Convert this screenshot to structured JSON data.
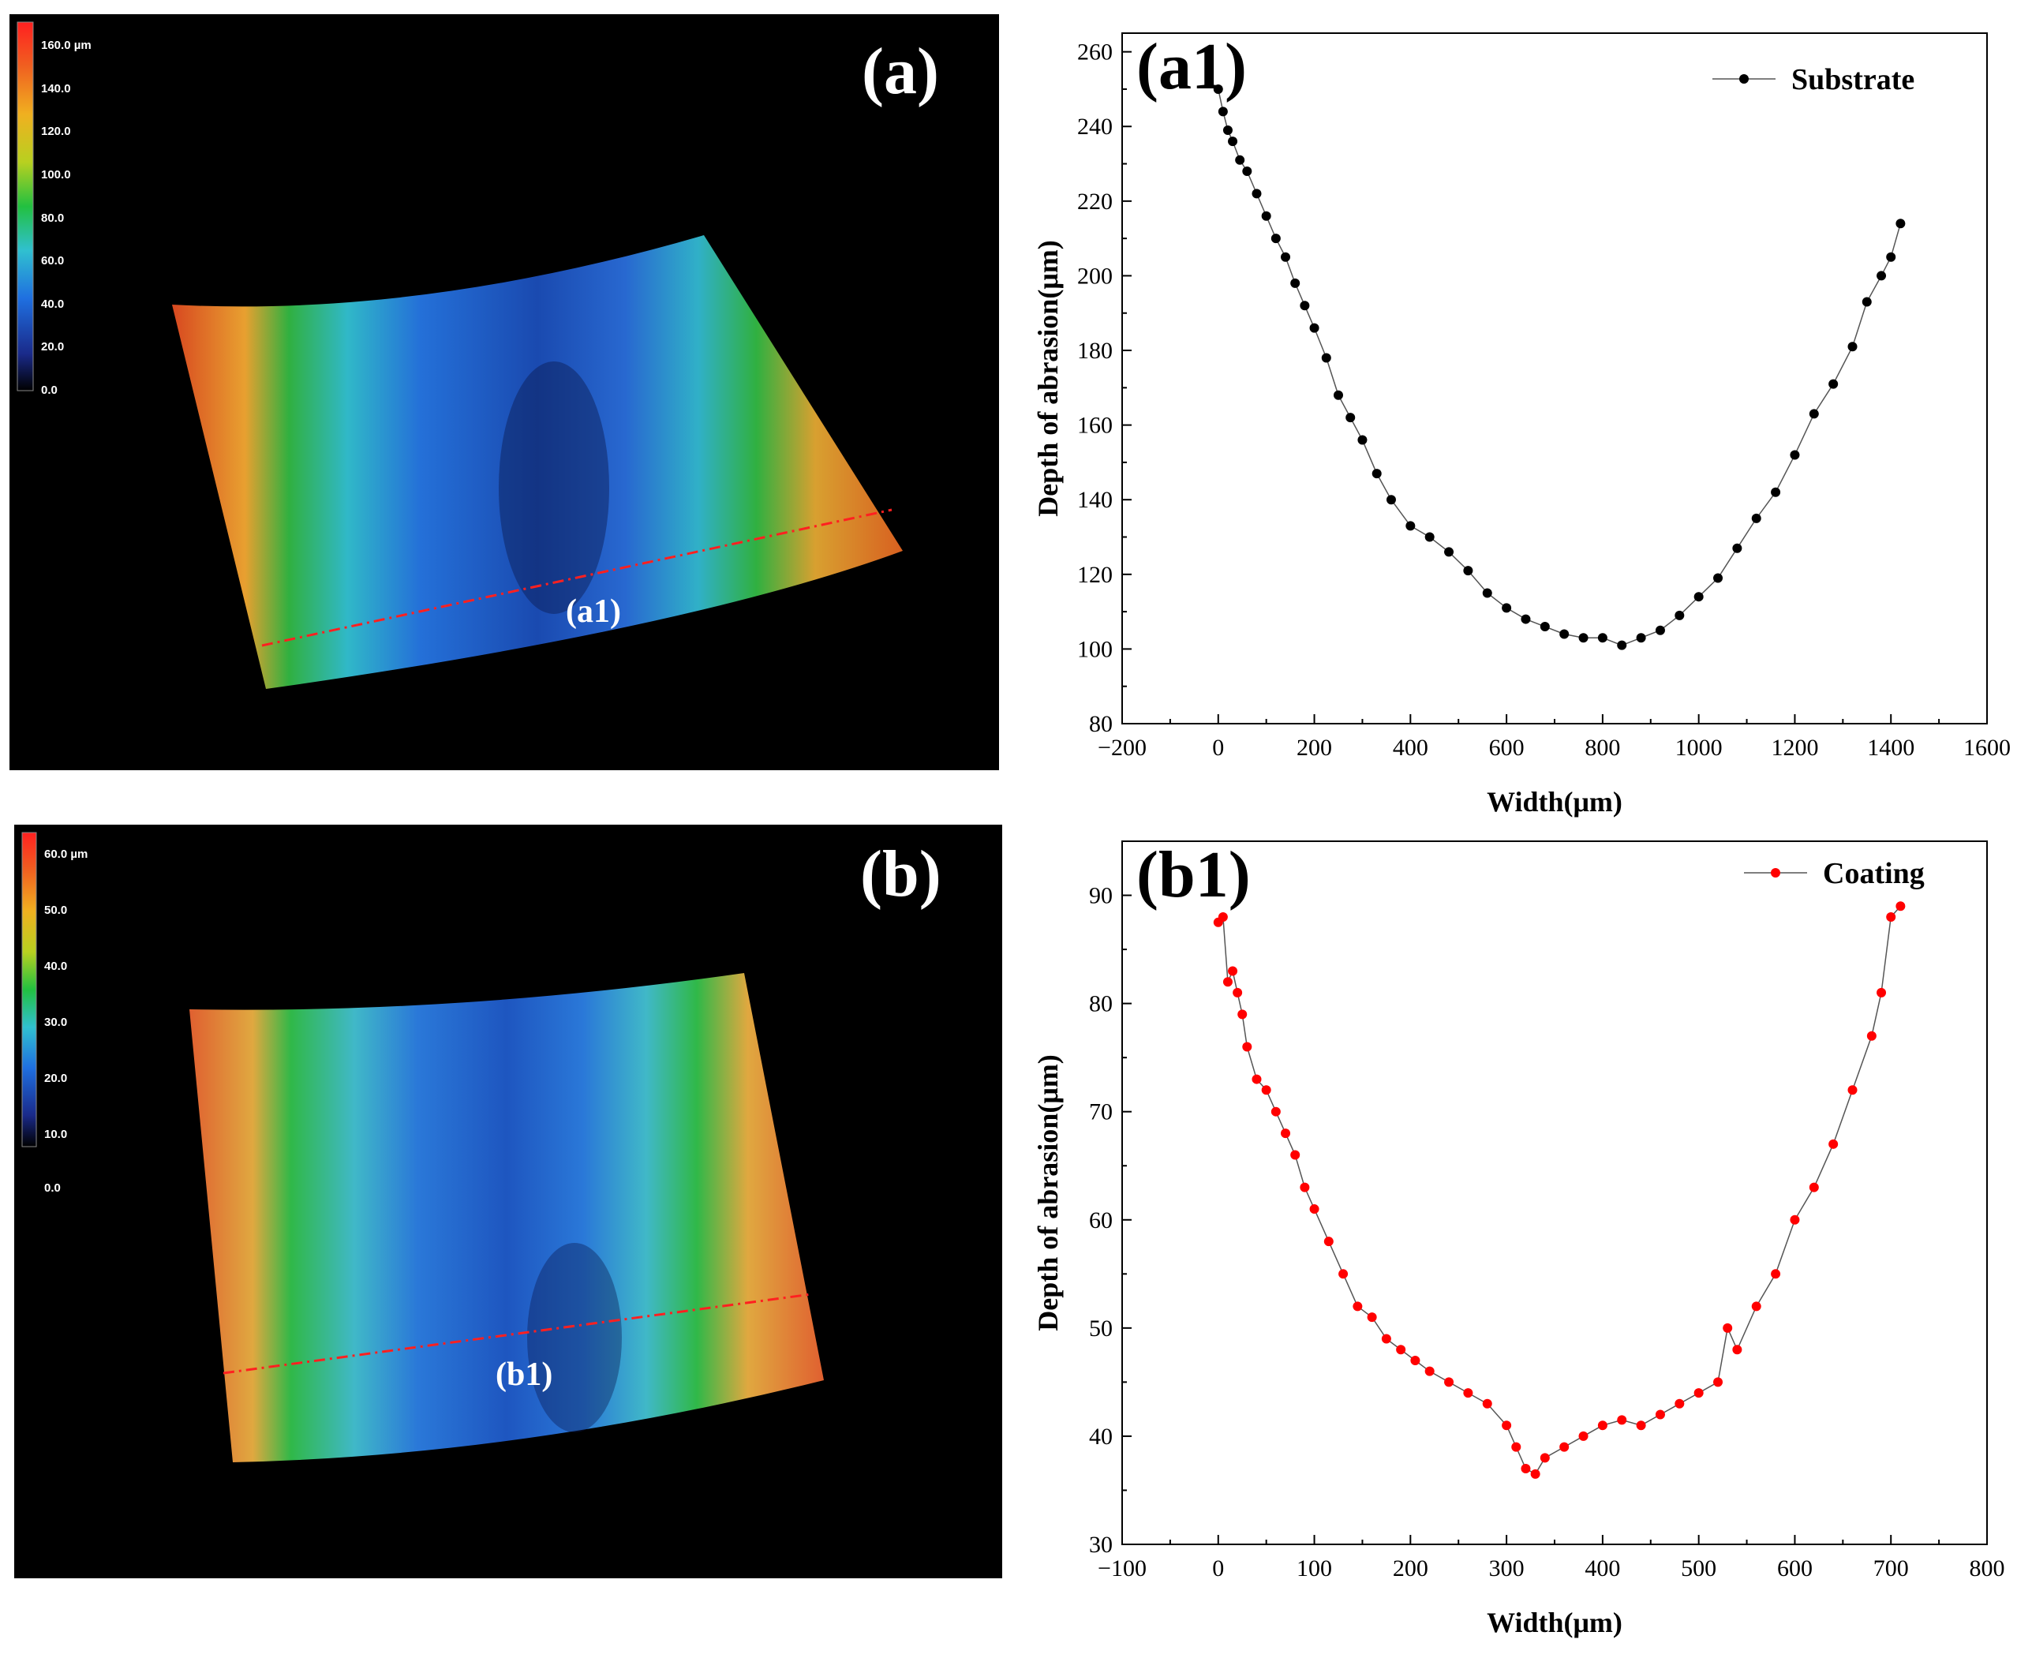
{
  "panel_a": {
    "tag": "(a)",
    "line_tag": "(a1)",
    "colorbar_labels": [
      "160.0 µm",
      "140.0",
      "120.0",
      "100.0",
      "80.0",
      "60.0",
      "40.0",
      "20.0",
      "0.0"
    ]
  },
  "panel_b": {
    "tag": "(b)",
    "line_tag": "(b1)",
    "colorbar_labels": [
      "60.0 µm",
      "50.0",
      "40.0",
      "30.0",
      "20.0",
      "10.0",
      "0.0"
    ]
  },
  "chart_data": [
    {
      "id": "a1",
      "type": "line",
      "panel_label": "(a1)",
      "title": "",
      "xlabel": "Width(μm)",
      "ylabel": "Depth of abrasion(μm)",
      "xlim": [
        -200,
        1600
      ],
      "ylim": [
        80,
        265
      ],
      "xticks": [
        -200,
        0,
        200,
        400,
        600,
        800,
        1000,
        1200,
        1400,
        1600
      ],
      "yticks": [
        80,
        100,
        120,
        140,
        160,
        180,
        200,
        220,
        240,
        260
      ],
      "xtick_labels": [
        "−200",
        "0",
        "200",
        "400",
        "600",
        "800",
        "1000",
        "1200",
        "1400",
        "1600"
      ],
      "yticks_labels": [
        "80",
        "100",
        "120",
        "140",
        "160",
        "180",
        "200",
        "220",
        "240",
        "260"
      ],
      "legend_position": "top-right",
      "grid": false,
      "series": [
        {
          "name": "Substrate",
          "color": "#000000",
          "x": [
            0,
            10,
            20,
            30,
            45,
            60,
            80,
            100,
            120,
            140,
            160,
            180,
            200,
            225,
            250,
            275,
            300,
            330,
            360,
            400,
            440,
            480,
            520,
            560,
            600,
            640,
            680,
            720,
            760,
            800,
            840,
            880,
            920,
            960,
            1000,
            1040,
            1080,
            1120,
            1160,
            1200,
            1240,
            1280,
            1320,
            1350,
            1380,
            1400,
            1420
          ],
          "y": [
            250,
            244,
            239,
            236,
            231,
            228,
            222,
            216,
            210,
            205,
            198,
            192,
            186,
            178,
            168,
            162,
            156,
            147,
            140,
            133,
            130,
            126,
            121,
            115,
            111,
            108,
            106,
            104,
            103,
            103,
            101,
            103,
            105,
            109,
            114,
            119,
            127,
            135,
            142,
            152,
            163,
            171,
            181,
            193,
            200,
            205,
            214
          ]
        }
      ]
    },
    {
      "id": "b1",
      "type": "line",
      "panel_label": "(b1)",
      "title": "",
      "xlabel": "Width(μm)",
      "ylabel": "Depth of abrasion(μm)",
      "xlim": [
        -100,
        800
      ],
      "ylim": [
        30,
        95
      ],
      "xticks": [
        -100,
        0,
        100,
        200,
        300,
        400,
        500,
        600,
        700,
        800
      ],
      "yticks": [
        30,
        40,
        50,
        60,
        70,
        80,
        90
      ],
      "xtick_labels": [
        "−100",
        "0",
        "100",
        "200",
        "300",
        "400",
        "500",
        "600",
        "700",
        "800"
      ],
      "yticks_labels": [
        "30",
        "40",
        "50",
        "60",
        "70",
        "80",
        "90"
      ],
      "legend_position": "top-right",
      "grid": false,
      "series": [
        {
          "name": "Coating",
          "color": "#ff0000",
          "x": [
            0,
            5,
            10,
            15,
            20,
            25,
            30,
            40,
            50,
            60,
            70,
            80,
            90,
            100,
            115,
            130,
            145,
            160,
            175,
            190,
            205,
            220,
            240,
            260,
            280,
            300,
            310,
            320,
            330,
            340,
            360,
            380,
            400,
            420,
            440,
            460,
            480,
            500,
            520,
            530,
            540,
            560,
            580,
            600,
            620,
            640,
            660,
            680,
            690,
            700,
            710
          ],
          "y": [
            87.5,
            88,
            82,
            83,
            81,
            79,
            76,
            73,
            72,
            70,
            68,
            66,
            63,
            61,
            58,
            55,
            52,
            51,
            49,
            48,
            47,
            46,
            45,
            44,
            43,
            41,
            39,
            37,
            36.5,
            38,
            39,
            40,
            41,
            41.5,
            41,
            42,
            43,
            44,
            45,
            50,
            48,
            52,
            55,
            60,
            63,
            67,
            72,
            77,
            81,
            88,
            89
          ]
        }
      ]
    }
  ]
}
